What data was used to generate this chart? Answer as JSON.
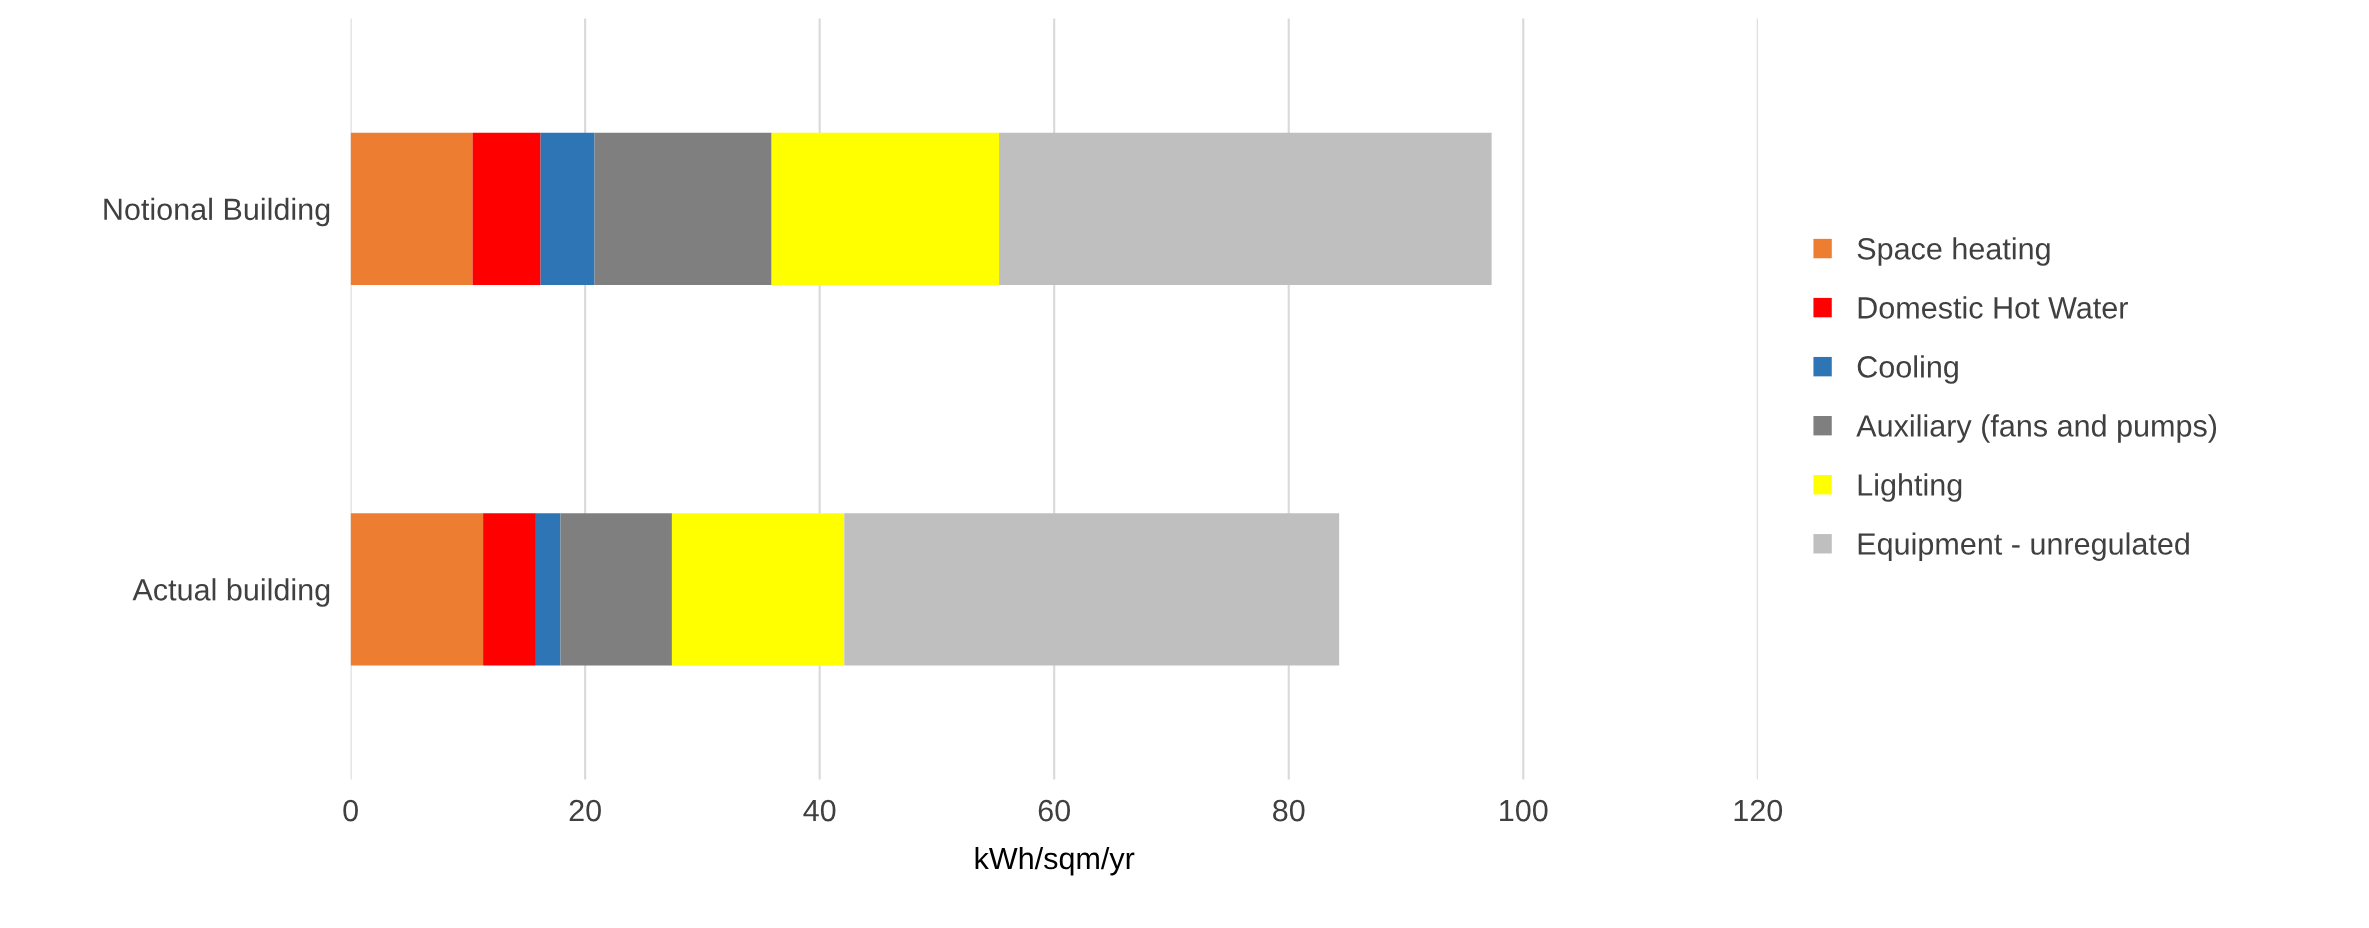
{
  "chart_data": {
    "type": "bar",
    "orientation": "horizontal",
    "stacked": true,
    "xlabel": "kWh/sqm/yr",
    "categories": [
      "Notional Building",
      "Actual building"
    ],
    "series": [
      {
        "name": "Space heating",
        "color": "#ed7d31",
        "values": [
          10.4,
          11.3
        ]
      },
      {
        "name": "Domestic Hot Water",
        "color": "#ff0000",
        "values": [
          5.8,
          4.5
        ]
      },
      {
        "name": "Cooling",
        "color": "#2e75b6",
        "values": [
          4.6,
          2.1
        ]
      },
      {
        "name": "Auxiliary (fans and pumps)",
        "color": "#7f7f7f",
        "values": [
          15.1,
          9.5
        ]
      },
      {
        "name": "Lighting",
        "color": "#ffff00",
        "values": [
          19.4,
          14.7
        ]
      },
      {
        "name": "Equipment - unregulated",
        "color": "#bfbfbf",
        "values": [
          42.0,
          42.2
        ]
      }
    ],
    "xlim": [
      0,
      120
    ],
    "xticks": [
      0,
      20,
      40,
      60,
      80,
      100,
      120
    ],
    "grid": "x",
    "legend": "right"
  }
}
